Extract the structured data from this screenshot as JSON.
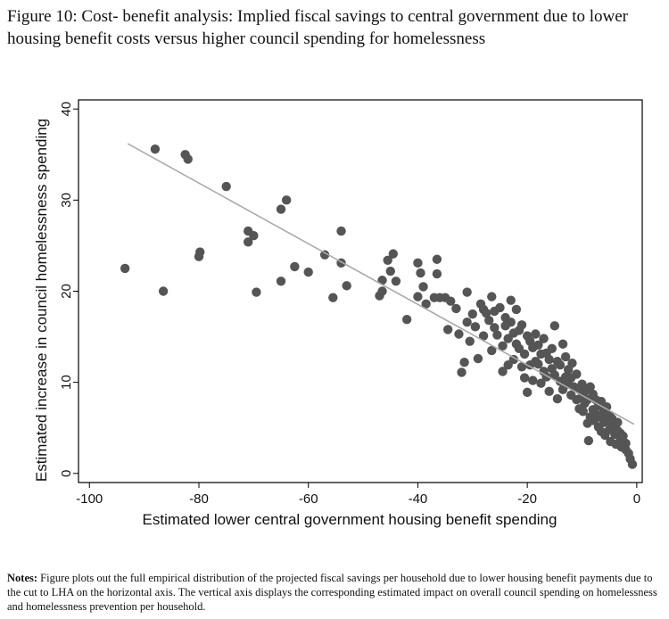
{
  "caption": {
    "label": "Figure 10:",
    "text": "Cost- benefit analysis: Implied fiscal savings to central government due to lower housing benefit costs versus higher council spending for homelessness"
  },
  "notes": {
    "label": "Notes:",
    "text": "Figure plots out the full empirical distribution of the projected fiscal savings per household due to lower housing benefit payments due to the cut to LHA on the horizontal axis. The vertical axis displays the corresponding estimated impact on overall council spending on homelessness and homelessness prevention per household."
  },
  "colors": {
    "points": "#555555",
    "fit_line": "#aaaaaa",
    "axis": "#000000"
  },
  "chart_data": {
    "type": "scatter",
    "title": "",
    "xlabel": "Estimated lower central government housing benefit spending",
    "ylabel": "Estimated increase in council homelessness spending",
    "xlim": [
      -102,
      1
    ],
    "ylim": [
      -1,
      41
    ],
    "xticks": [
      -100,
      -80,
      -60,
      -40,
      -20,
      0
    ],
    "yticks": [
      0,
      10,
      20,
      30,
      40
    ],
    "grid": false,
    "legend": "none",
    "fit_line": {
      "x": [
        -93,
        -0.5
      ],
      "y": [
        36.2,
        5.4
      ]
    },
    "points": [
      [
        -93.5,
        22.5
      ],
      [
        -88,
        35.6
      ],
      [
        -86.5,
        20
      ],
      [
        -82.5,
        35
      ],
      [
        -82,
        34.5
      ],
      [
        -80,
        23.8
      ],
      [
        -79.8,
        24.3
      ],
      [
        -75,
        31.5
      ],
      [
        -71,
        25.4
      ],
      [
        -71,
        26.6
      ],
      [
        -70,
        26.1
      ],
      [
        -69.5,
        19.9
      ],
      [
        -65,
        29
      ],
      [
        -65,
        21.1
      ],
      [
        -64,
        30
      ],
      [
        -62.5,
        22.7
      ],
      [
        -60,
        22.1
      ],
      [
        -57,
        24
      ],
      [
        -55.5,
        19.3
      ],
      [
        -54,
        26.6
      ],
      [
        -54,
        23.1
      ],
      [
        -53,
        20.6
      ],
      [
        -47,
        19.5
      ],
      [
        -46.5,
        21.2
      ],
      [
        -46.5,
        20
      ],
      [
        -45.5,
        23.4
      ],
      [
        -45,
        22.2
      ],
      [
        -44.5,
        24.1
      ],
      [
        -44,
        21.1
      ],
      [
        -42,
        16.9
      ],
      [
        -40,
        19.4
      ],
      [
        -40,
        23.1
      ],
      [
        -39.5,
        22
      ],
      [
        -39,
        20.5
      ],
      [
        -38.5,
        18.6
      ],
      [
        -37,
        19.3
      ],
      [
        -36.5,
        23.5
      ],
      [
        -36.5,
        21.9
      ],
      [
        -36,
        19.3
      ],
      [
        -35,
        19.3
      ],
      [
        -34.5,
        15.8
      ],
      [
        -34,
        18.9
      ],
      [
        -33,
        18.1
      ],
      [
        -32.5,
        15.3
      ],
      [
        -32,
        11.1
      ],
      [
        -31.5,
        12.2
      ],
      [
        -31,
        16.6
      ],
      [
        -31,
        19.9
      ],
      [
        -30.5,
        14.5
      ],
      [
        -30,
        17.5
      ],
      [
        -29.5,
        16.1
      ],
      [
        -29,
        12.6
      ],
      [
        -28.5,
        18.6
      ],
      [
        -28,
        18
      ],
      [
        -28,
        15.1
      ],
      [
        -27.5,
        17.6
      ],
      [
        -27,
        16.8
      ],
      [
        -26.5,
        19.4
      ],
      [
        -26.5,
        13.5
      ],
      [
        -26,
        16
      ],
      [
        -26,
        17.8
      ],
      [
        -25.5,
        15.2
      ],
      [
        -25,
        18.2
      ],
      [
        -24.5,
        11.2
      ],
      [
        -24.5,
        14
      ],
      [
        -24,
        16.2
      ],
      [
        -24,
        17.1
      ],
      [
        -23.5,
        11.9
      ],
      [
        -23.5,
        14.8
      ],
      [
        -23,
        19
      ],
      [
        -23,
        16.6
      ],
      [
        -22.5,
        15.4
      ],
      [
        -22.5,
        12.5
      ],
      [
        -22,
        18
      ],
      [
        -22,
        14.2
      ],
      [
        -21.5,
        13.7
      ],
      [
        -21.5,
        15.7
      ],
      [
        -21,
        11.7
      ],
      [
        -21,
        16.3
      ],
      [
        -20.5,
        10.5
      ],
      [
        -20.5,
        13.1
      ],
      [
        -20,
        8.9
      ],
      [
        -20,
        15.1
      ],
      [
        -19.5,
        11.9
      ],
      [
        -19.5,
        14.5
      ],
      [
        -19,
        13.8
      ],
      [
        -19,
        10.2
      ],
      [
        -18.5,
        15.3
      ],
      [
        -18.5,
        12.3
      ],
      [
        -18,
        12
      ],
      [
        -18,
        14.1
      ],
      [
        -17.5,
        9.9
      ],
      [
        -17.5,
        13.1
      ],
      [
        -17,
        11.2
      ],
      [
        -17,
        14.8
      ],
      [
        -16.5,
        13.2
      ],
      [
        -16.5,
        10.6
      ],
      [
        -16,
        9
      ],
      [
        -16,
        12.5
      ],
      [
        -15.5,
        11.5
      ],
      [
        -15.5,
        13.7
      ],
      [
        -15,
        10.8
      ],
      [
        -15,
        16.2
      ],
      [
        -14.5,
        12.3
      ],
      [
        -14.5,
        8.2
      ],
      [
        -14,
        10.1
      ],
      [
        -14,
        11.9
      ],
      [
        -13.5,
        14.2
      ],
      [
        -13.5,
        9.2
      ],
      [
        -13,
        10.6
      ],
      [
        -13,
        12.8
      ],
      [
        -12.5,
        9.8
      ],
      [
        -12.5,
        11.4
      ],
      [
        -12,
        8.6
      ],
      [
        -12,
        10.5
      ],
      [
        -11.8,
        12.1
      ],
      [
        -11.5,
        9.5
      ],
      [
        -11,
        10.9
      ],
      [
        -11,
        8.1
      ],
      [
        -10.5,
        9.2
      ],
      [
        -10.5,
        7.1
      ],
      [
        -10,
        8.4
      ],
      [
        -10,
        9.8
      ],
      [
        -9.8,
        6.8
      ],
      [
        -9.5,
        7.7
      ],
      [
        -9.5,
        9
      ],
      [
        -9,
        5.5
      ],
      [
        -9,
        8.1
      ],
      [
        -8.8,
        3.6
      ],
      [
        -8.5,
        6.2
      ],
      [
        -8.5,
        9.5
      ],
      [
        -8,
        7
      ],
      [
        -8,
        8.7
      ],
      [
        -7.8,
        5.8
      ],
      [
        -7.5,
        6.5
      ],
      [
        -7.5,
        8.1
      ],
      [
        -7,
        5.1
      ],
      [
        -7,
        7.4
      ],
      [
        -6.8,
        6.2
      ],
      [
        -6.5,
        4.6
      ],
      [
        -6.5,
        7.9
      ],
      [
        -6,
        5.6
      ],
      [
        -6,
        6.8
      ],
      [
        -5.8,
        4.2
      ],
      [
        -5.5,
        5.9
      ],
      [
        -5.5,
        7.3
      ],
      [
        -5,
        4.8
      ],
      [
        -5,
        6.4
      ],
      [
        -4.8,
        3.5
      ],
      [
        -4.5,
        5.3
      ],
      [
        -4.5,
        6
      ],
      [
        -4,
        4.3
      ],
      [
        -4,
        5.1
      ],
      [
        -3.8,
        3.2
      ],
      [
        -3.5,
        4.7
      ],
      [
        -3.5,
        5.6
      ],
      [
        -3,
        3.8
      ],
      [
        -3,
        4.4
      ],
      [
        -2.8,
        2.9
      ],
      [
        -2.5,
        3.5
      ],
      [
        -2.5,
        4.1
      ],
      [
        -2,
        2.6
      ],
      [
        -2,
        3.3
      ],
      [
        -1.5,
        2.2
      ],
      [
        -1.2,
        1.6
      ],
      [
        -0.8,
        1
      ]
    ]
  }
}
